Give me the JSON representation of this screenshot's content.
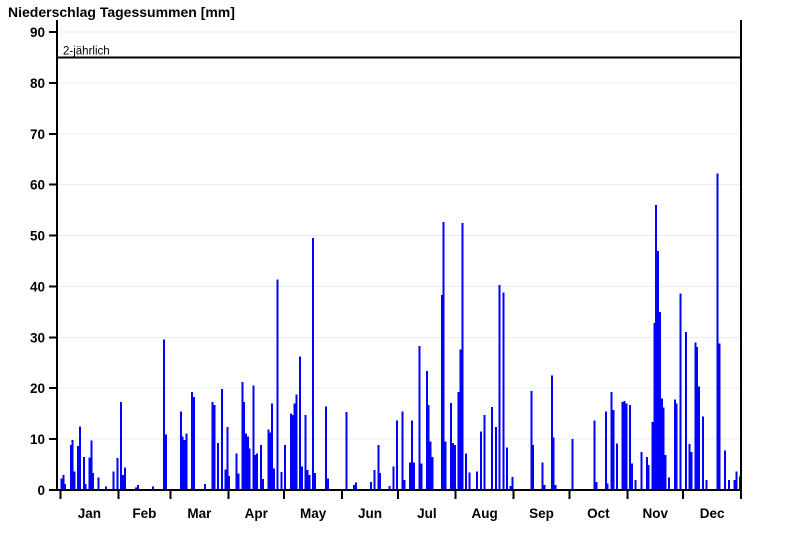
{
  "page": {
    "background": "#ffffff"
  },
  "chart_data": {
    "type": "bar",
    "title": "Niederschlag Tagessummen [mm]",
    "xlabel": "",
    "ylabel": "",
    "unit": "mm",
    "ylim": [
      0,
      90
    ],
    "yticks": [
      0,
      10,
      20,
      30,
      40,
      50,
      60,
      70,
      80,
      90
    ],
    "grid": "horizontal",
    "legend": "none",
    "bar_color": "#0000ff",
    "axis_color": "#000000",
    "grid_color": "#ececec",
    "threshold_line": {
      "label": "2-jährlich",
      "value": 85,
      "color": "#000000"
    },
    "x_axis": {
      "kind": "day-of-year",
      "month_labels": [
        "Jan",
        "Feb",
        "Mar",
        "Apr",
        "May",
        "Jun",
        "Jul",
        "Aug",
        "Sep",
        "Oct",
        "Nov",
        "Dec"
      ],
      "days_in_month": [
        31,
        28,
        31,
        30,
        31,
        30,
        31,
        31,
        30,
        31,
        30,
        31
      ]
    },
    "series": [
      {
        "name": "Niederschlag Tagessumme",
        "points_format": [
          "day_of_year",
          "mm"
        ],
        "points": [
          [
            1,
            2.3
          ],
          [
            2,
            2.9
          ],
          [
            3,
            1.2
          ],
          [
            6,
            8.8
          ],
          [
            7,
            9.8
          ],
          [
            8,
            3.6
          ],
          [
            10,
            8.6
          ],
          [
            11,
            12.5
          ],
          [
            13,
            6.5
          ],
          [
            14,
            1.2
          ],
          [
            16,
            6.4
          ],
          [
            17,
            9.7
          ],
          [
            18,
            3.3
          ],
          [
            21,
            2.5
          ],
          [
            25,
            0.7
          ],
          [
            29,
            3.6
          ],
          [
            31,
            6.3
          ],
          [
            33,
            17.3
          ],
          [
            34,
            2.9
          ],
          [
            35,
            4.4
          ],
          [
            41,
            0.5
          ],
          [
            42,
            1.0
          ],
          [
            50,
            0.7
          ],
          [
            56,
            29.6
          ],
          [
            57,
            10.9
          ],
          [
            65,
            15.4
          ],
          [
            66,
            10.5
          ],
          [
            67,
            9.8
          ],
          [
            68,
            11.1
          ],
          [
            71,
            19.3
          ],
          [
            72,
            18.3
          ],
          [
            78,
            1.2
          ],
          [
            82,
            17.3
          ],
          [
            83,
            16.7
          ],
          [
            85,
            9.2
          ],
          [
            87,
            19.8
          ],
          [
            89,
            4.0
          ],
          [
            90,
            12.4
          ],
          [
            91,
            2.8
          ],
          [
            95,
            7.2
          ],
          [
            96,
            3.2
          ],
          [
            98,
            21.2
          ],
          [
            99,
            17.3
          ],
          [
            100,
            11.1
          ],
          [
            101,
            10.5
          ],
          [
            102,
            8.2
          ],
          [
            104,
            20.5
          ],
          [
            105,
            6.9
          ],
          [
            106,
            7.2
          ],
          [
            108,
            8.8
          ],
          [
            109,
            2.2
          ],
          [
            112,
            11.9
          ],
          [
            113,
            11.3
          ],
          [
            114,
            17.0
          ],
          [
            115,
            4.2
          ],
          [
            117,
            41.4
          ],
          [
            119,
            3.5
          ],
          [
            121,
            8.8
          ],
          [
            124,
            15.0
          ],
          [
            125,
            14.7
          ],
          [
            126,
            17.0
          ],
          [
            127,
            18.8
          ],
          [
            129,
            26.2
          ],
          [
            130,
            4.6
          ],
          [
            132,
            14.7
          ],
          [
            133,
            3.9
          ],
          [
            134,
            2.9
          ],
          [
            136,
            49.5
          ],
          [
            137,
            3.3
          ],
          [
            143,
            16.4
          ],
          [
            144,
            2.3
          ],
          [
            154,
            15.3
          ],
          [
            158,
            1.0
          ],
          [
            159,
            1.5
          ],
          [
            167,
            1.6
          ],
          [
            169,
            3.9
          ],
          [
            171,
            8.8
          ],
          [
            172,
            3.3
          ],
          [
            177,
            0.8
          ],
          [
            179,
            4.6
          ],
          [
            181,
            13.7
          ],
          [
            184,
            15.4
          ],
          [
            185,
            2.0
          ],
          [
            188,
            5.4
          ],
          [
            189,
            13.7
          ],
          [
            190,
            5.4
          ],
          [
            193,
            28.3
          ],
          [
            194,
            5.2
          ],
          [
            197,
            23.4
          ],
          [
            198,
            16.7
          ],
          [
            199,
            9.5
          ],
          [
            200,
            6.5
          ],
          [
            205,
            38.3
          ],
          [
            206,
            52.7
          ],
          [
            207,
            9.5
          ],
          [
            210,
            17.1
          ],
          [
            211,
            9.2
          ],
          [
            212,
            8.8
          ],
          [
            214,
            19.3
          ],
          [
            215,
            27.6
          ],
          [
            216,
            52.5
          ],
          [
            218,
            7.2
          ],
          [
            220,
            3.4
          ],
          [
            224,
            3.6
          ],
          [
            226,
            11.5
          ],
          [
            228,
            14.7
          ],
          [
            232,
            16.3
          ],
          [
            234,
            12.4
          ],
          [
            236,
            40.3
          ],
          [
            238,
            38.8
          ],
          [
            240,
            8.4
          ],
          [
            242,
            0.8
          ],
          [
            243,
            2.6
          ],
          [
            253,
            19.5
          ],
          [
            254,
            8.8
          ],
          [
            259,
            5.4
          ],
          [
            260,
            1.0
          ],
          [
            264,
            22.5
          ],
          [
            265,
            10.3
          ],
          [
            266,
            1.0
          ],
          [
            275,
            10.0
          ],
          [
            287,
            13.7
          ],
          [
            288,
            1.6
          ],
          [
            293,
            15.4
          ],
          [
            294,
            1.3
          ],
          [
            296,
            19.3
          ],
          [
            297,
            15.7
          ],
          [
            299,
            9.1
          ],
          [
            302,
            17.3
          ],
          [
            303,
            17.5
          ],
          [
            304,
            17.0
          ],
          [
            306,
            16.7
          ],
          [
            307,
            5.2
          ],
          [
            309,
            2.0
          ],
          [
            312,
            7.5
          ],
          [
            315,
            6.5
          ],
          [
            316,
            4.9
          ],
          [
            318,
            13.4
          ],
          [
            319,
            32.8
          ],
          [
            320,
            56.0
          ],
          [
            321,
            47.0
          ],
          [
            322,
            35.0
          ],
          [
            323,
            18.0
          ],
          [
            324,
            16.2
          ],
          [
            325,
            6.9
          ],
          [
            327,
            2.5
          ],
          [
            330,
            17.8
          ],
          [
            331,
            17.0
          ],
          [
            333,
            38.6
          ],
          [
            336,
            31.0
          ],
          [
            338,
            9.0
          ],
          [
            339,
            7.5
          ],
          [
            341,
            29.0
          ],
          [
            342,
            28.1
          ],
          [
            343,
            20.3
          ],
          [
            345,
            14.4
          ],
          [
            347,
            2.0
          ],
          [
            353,
            62.2
          ],
          [
            354,
            28.8
          ],
          [
            357,
            7.8
          ],
          [
            359,
            2.0
          ],
          [
            362,
            2.0
          ],
          [
            363,
            3.6
          ],
          [
            365,
            2.7
          ]
        ]
      }
    ]
  }
}
